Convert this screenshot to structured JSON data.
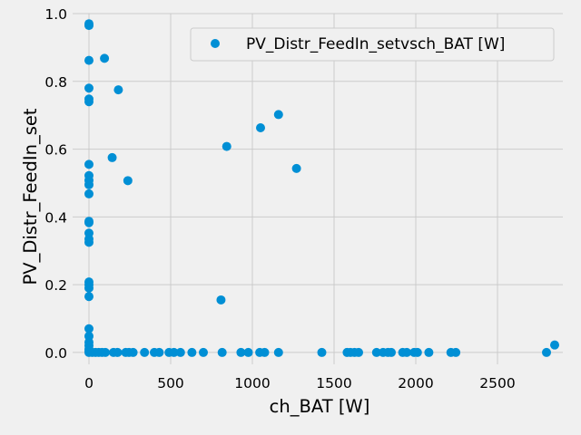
{
  "chart_data": {
    "type": "scatter",
    "title": "",
    "xlabel": "ch_BAT [W]",
    "ylabel": "PV_Distr_FeedIn_set",
    "xlim": [
      -100,
      2900
    ],
    "ylim": [
      -0.035,
      1.0
    ],
    "xticks": [
      0,
      500,
      1000,
      1500,
      2000,
      2500
    ],
    "xtick_labels": [
      "0",
      "500",
      "1000",
      "1500",
      "2000",
      "2500"
    ],
    "yticks": [
      0.0,
      0.2,
      0.4,
      0.6,
      0.8,
      1.0
    ],
    "ytick_labels": [
      "0.0",
      "0.2",
      "0.4",
      "0.6",
      "0.8",
      "1.0"
    ],
    "grid": true,
    "legend_position": "top-right",
    "color": "#008fd5",
    "series": [
      {
        "name": "PV_Distr_FeedIn_setvsch_BAT [W]",
        "points": [
          [
            0,
            0.97
          ],
          [
            0,
            0.965
          ],
          [
            0,
            0.862
          ],
          [
            0,
            0.78
          ],
          [
            0,
            0.748
          ],
          [
            0,
            0.74
          ],
          [
            0,
            0.555
          ],
          [
            0,
            0.522
          ],
          [
            0,
            0.508
          ],
          [
            0,
            0.495
          ],
          [
            0,
            0.468
          ],
          [
            0,
            0.387
          ],
          [
            0,
            0.383
          ],
          [
            0,
            0.352
          ],
          [
            0,
            0.335
          ],
          [
            0,
            0.325
          ],
          [
            0,
            0.208
          ],
          [
            0,
            0.2
          ],
          [
            0,
            0.19
          ],
          [
            0,
            0.165
          ],
          [
            0,
            0.07
          ],
          [
            0,
            0.048
          ],
          [
            0,
            0.03
          ],
          [
            0,
            0.02
          ],
          [
            0,
            0.01
          ],
          [
            0,
            0.004
          ],
          [
            0,
            0.0
          ],
          [
            95,
            0.868
          ],
          [
            180,
            0.775
          ],
          [
            142,
            0.575
          ],
          [
            238,
            0.507
          ],
          [
            843,
            0.608
          ],
          [
            1050,
            0.663
          ],
          [
            1160,
            0.702
          ],
          [
            1270,
            0.543
          ],
          [
            808,
            0.155
          ],
          [
            2850,
            0.022
          ],
          [
            20,
            0.0
          ],
          [
            40,
            0.0
          ],
          [
            60,
            0.0
          ],
          [
            80,
            0.0
          ],
          [
            100,
            0.0
          ],
          [
            150,
            0.0
          ],
          [
            175,
            0.0
          ],
          [
            225,
            0.0
          ],
          [
            245,
            0.0
          ],
          [
            270,
            0.0
          ],
          [
            340,
            0.0
          ],
          [
            400,
            0.0
          ],
          [
            430,
            0.0
          ],
          [
            490,
            0.0
          ],
          [
            520,
            0.0
          ],
          [
            560,
            0.0
          ],
          [
            630,
            0.0
          ],
          [
            700,
            0.0
          ],
          [
            815,
            0.0
          ],
          [
            930,
            0.0
          ],
          [
            975,
            0.0
          ],
          [
            1045,
            0.0
          ],
          [
            1075,
            0.0
          ],
          [
            1160,
            0.0
          ],
          [
            1425,
            0.0
          ],
          [
            1580,
            0.0
          ],
          [
            1600,
            0.0
          ],
          [
            1625,
            0.0
          ],
          [
            1650,
            0.0
          ],
          [
            1760,
            0.0
          ],
          [
            1800,
            0.0
          ],
          [
            1830,
            0.0
          ],
          [
            1850,
            0.0
          ],
          [
            1920,
            0.0
          ],
          [
            1945,
            0.0
          ],
          [
            1990,
            0.0
          ],
          [
            2010,
            0.0
          ],
          [
            2080,
            0.0
          ],
          [
            2215,
            0.0
          ],
          [
            2245,
            0.0
          ],
          [
            2800,
            0.0
          ]
        ]
      }
    ]
  }
}
